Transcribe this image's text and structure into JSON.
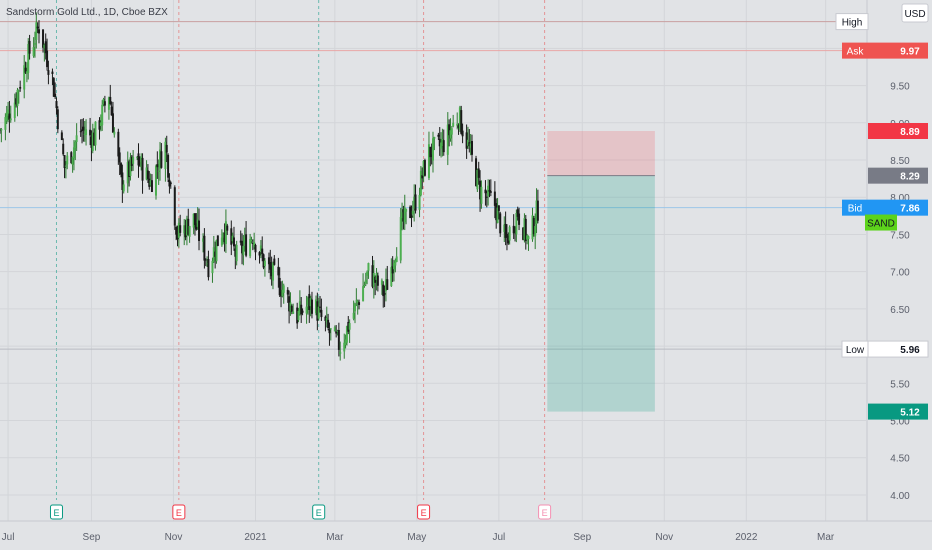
{
  "title": "Sandstorm Gold Ltd., 1D, Cboe BZX",
  "currency": "USD",
  "chart_data": {
    "type": "candlestick",
    "symbol": "SAND",
    "y_ticks": [
      4.0,
      4.5,
      5.0,
      5.5,
      6.0,
      6.5,
      7.0,
      7.5,
      8.0,
      8.5,
      9.0,
      9.5,
      10.0
    ],
    "y_tick_labels": [
      "4.00",
      "4.50",
      "5.00",
      "5.50",
      "6.00",
      "6.50",
      "7.00",
      "7.50",
      "8.00",
      "8.50",
      "9.00",
      "9.50",
      ""
    ],
    "ylim": [
      3.65,
      10.65
    ],
    "x_range": [
      "2020-06-25",
      "2022-03-31"
    ],
    "x_ticks": [
      {
        "label": "Jul",
        "date": "2020-07-01"
      },
      {
        "label": "Sep",
        "date": "2020-09-01"
      },
      {
        "label": "Nov",
        "date": "2020-11-01"
      },
      {
        "label": "2021",
        "date": "2021-01-01"
      },
      {
        "label": "Mar",
        "date": "2021-03-01"
      },
      {
        "label": "May",
        "date": "2021-05-01"
      },
      {
        "label": "Jul",
        "date": "2021-07-01"
      },
      {
        "label": "Sep",
        "date": "2021-09-01"
      },
      {
        "label": "Nov",
        "date": "2021-11-01"
      },
      {
        "label": "2022",
        "date": "2022-01-01"
      },
      {
        "label": "Mar",
        "date": "2022-03-01"
      }
    ],
    "close_path": [
      {
        "date": "2020-06-25",
        "value": 8.9
      },
      {
        "date": "2020-07-06",
        "value": 9.3
      },
      {
        "date": "2020-07-14",
        "value": 9.8
      },
      {
        "date": "2020-07-24",
        "value": 10.3
      },
      {
        "date": "2020-08-03",
        "value": 9.6
      },
      {
        "date": "2020-08-12",
        "value": 8.4
      },
      {
        "date": "2020-08-24",
        "value": 8.9
      },
      {
        "date": "2020-09-03",
        "value": 8.8
      },
      {
        "date": "2020-09-14",
        "value": 9.4
      },
      {
        "date": "2020-09-23",
        "value": 8.2
      },
      {
        "date": "2020-10-05",
        "value": 8.5
      },
      {
        "date": "2020-10-15",
        "value": 8.2
      },
      {
        "date": "2020-10-26",
        "value": 8.7
      },
      {
        "date": "2020-11-04",
        "value": 7.5
      },
      {
        "date": "2020-11-16",
        "value": 7.7
      },
      {
        "date": "2020-11-27",
        "value": 7.1
      },
      {
        "date": "2020-12-08",
        "value": 7.6
      },
      {
        "date": "2020-12-18",
        "value": 7.2
      },
      {
        "date": "2020-12-30",
        "value": 7.5
      },
      {
        "date": "2021-01-08",
        "value": 7.1
      },
      {
        "date": "2021-01-20",
        "value": 6.8
      },
      {
        "date": "2021-02-01",
        "value": 6.4
      },
      {
        "date": "2021-02-12",
        "value": 6.6
      },
      {
        "date": "2021-02-24",
        "value": 6.2
      },
      {
        "date": "2021-03-05",
        "value": 6.0
      },
      {
        "date": "2021-03-16",
        "value": 6.5
      },
      {
        "date": "2021-03-26",
        "value": 7.0
      },
      {
        "date": "2021-04-07",
        "value": 6.7
      },
      {
        "date": "2021-04-19",
        "value": 7.6
      },
      {
        "date": "2021-04-29",
        "value": 7.9
      },
      {
        "date": "2021-05-10",
        "value": 8.6
      },
      {
        "date": "2021-05-20",
        "value": 8.7
      },
      {
        "date": "2021-06-01",
        "value": 9.1
      },
      {
        "date": "2021-06-08",
        "value": 8.7
      },
      {
        "date": "2021-06-17",
        "value": 8.1
      },
      {
        "date": "2021-06-28",
        "value": 7.9
      },
      {
        "date": "2021-07-06",
        "value": 7.4
      },
      {
        "date": "2021-07-15",
        "value": 7.8
      },
      {
        "date": "2021-07-23",
        "value": 7.4
      },
      {
        "date": "2021-07-30",
        "value": 7.85
      }
    ],
    "earnings_markers": [
      {
        "date": "2020-08-06",
        "label": "E",
        "type": "past-beat"
      },
      {
        "date": "2020-11-05",
        "label": "E",
        "type": "past-miss"
      },
      {
        "date": "2021-02-17",
        "label": "E",
        "type": "past-beat"
      },
      {
        "date": "2021-05-06",
        "label": "E",
        "type": "past-miss"
      },
      {
        "date": "2021-08-04",
        "label": "E",
        "type": "upcoming"
      }
    ],
    "position": {
      "type": "short",
      "start_date": "2021-08-06",
      "end_date": "2021-10-25",
      "entry": 8.29,
      "stop": 8.89,
      "target": 5.12
    },
    "price_labels": [
      {
        "name": "High",
        "value": 10.36,
        "text": "",
        "kind": "high"
      },
      {
        "name": "Ask",
        "value": 9.97,
        "text": "9.97",
        "kind": "ask"
      },
      {
        "name": "",
        "value": 8.89,
        "text": "8.89",
        "kind": "stop"
      },
      {
        "name": "",
        "value": 8.29,
        "text": "8.29",
        "kind": "entry"
      },
      {
        "name": "Bid",
        "value": 7.86,
        "text": "7.86",
        "kind": "bid"
      },
      {
        "name": "SAND",
        "value": 7.66,
        "text": "",
        "kind": "symbol"
      },
      {
        "name": "Low",
        "value": 5.96,
        "text": "5.96",
        "kind": "low"
      },
      {
        "name": "",
        "value": 5.12,
        "text": "5.12",
        "kind": "target"
      }
    ],
    "colors": {
      "up": "#26a69a",
      "down": "#1a1a1a",
      "candle_up_fill": "#4caf50",
      "ask": "#ef5350",
      "bid": "#2196f3",
      "entry": "#787b86",
      "target": "#089981",
      "stop_zone": "rgba(242,54,69,0.18)",
      "target_zone": "rgba(8,153,129,0.22)",
      "symbol": "#5cd31b",
      "earnings_beat": "#089981",
      "earnings_miss": "#f23645"
    },
    "grid": true
  }
}
